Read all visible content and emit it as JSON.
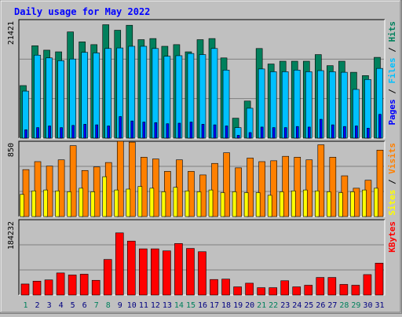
{
  "chart_data": [
    {
      "type": "bar",
      "title": "Daily usage for May 2022",
      "ylabel_parts": [
        "Pages",
        "Files",
        "Hits"
      ],
      "ymax_label": "21421",
      "ylim": [
        0,
        21421
      ],
      "categories": [
        "1",
        "2",
        "3",
        "4",
        "5",
        "6",
        "7",
        "8",
        "9",
        "10",
        "11",
        "12",
        "13",
        "14",
        "15",
        "16",
        "17",
        "18",
        "19",
        "20",
        "21",
        "22",
        "23",
        "24",
        "25",
        "26",
        "27",
        "28",
        "29",
        "30",
        "31"
      ],
      "weekend_days": [
        "1",
        "7",
        "8",
        "14",
        "15",
        "21",
        "22",
        "28",
        "29"
      ],
      "grid": true,
      "series": [
        {
          "name": "Hits",
          "color": "#00805c",
          "values": [
            9500,
            16700,
            15900,
            15600,
            19200,
            17400,
            16900,
            20500,
            19500,
            20400,
            17800,
            18000,
            16600,
            16900,
            15600,
            17800,
            18000,
            14500,
            3600,
            6700,
            16200,
            13400,
            13900,
            13900,
            13900,
            15100,
            13100,
            13900,
            11900,
            11300,
            14600
          ]
        },
        {
          "name": "Files",
          "color": "#00c0ff",
          "values": [
            8500,
            15000,
            14500,
            14000,
            14300,
            15500,
            15400,
            16200,
            16300,
            16600,
            16600,
            16200,
            14800,
            14900,
            15300,
            15100,
            16200,
            12300,
            1900,
            5400,
            12500,
            12000,
            12000,
            12300,
            12000,
            12200,
            12000,
            11900,
            8800,
            10600,
            12600
          ]
        },
        {
          "name": "Pages",
          "color": "#0000ff",
          "values": [
            1500,
            1900,
            2200,
            1900,
            2300,
            2500,
            2400,
            2200,
            3900,
            3100,
            2900,
            2800,
            2600,
            2700,
            2900,
            2500,
            2400,
            2200,
            500,
            1000,
            2000,
            1900,
            1900,
            2100,
            2000,
            3400,
            2400,
            2100,
            2200,
            1800,
            4300
          ]
        }
      ]
    },
    {
      "type": "bar",
      "ylabel_parts": [
        "Sites",
        "Visits"
      ],
      "ymax_label": "850",
      "ylim": [
        0,
        850
      ],
      "categories": [
        "1",
        "2",
        "3",
        "4",
        "5",
        "6",
        "7",
        "8",
        "9",
        "10",
        "11",
        "12",
        "13",
        "14",
        "15",
        "16",
        "17",
        "18",
        "19",
        "20",
        "21",
        "22",
        "23",
        "24",
        "25",
        "26",
        "27",
        "28",
        "29",
        "30",
        "31"
      ],
      "grid": true,
      "series": [
        {
          "name": "Visits",
          "color": "#ff8000",
          "values": [
            530,
            620,
            570,
            640,
            800,
            520,
            560,
            610,
            850,
            840,
            670,
            650,
            510,
            640,
            510,
            470,
            600,
            720,
            550,
            660,
            620,
            630,
            680,
            670,
            640,
            810,
            670,
            460,
            320,
            410,
            750
          ]
        },
        {
          "name": "Sites",
          "color": "#ffff00",
          "values": [
            250,
            290,
            300,
            290,
            280,
            320,
            280,
            450,
            300,
            310,
            340,
            320,
            280,
            330,
            290,
            280,
            300,
            270,
            280,
            270,
            270,
            240,
            280,
            290,
            300,
            290,
            280,
            270,
            280,
            300,
            320
          ]
        }
      ]
    },
    {
      "type": "bar",
      "ylabel_parts": [
        "KBytes"
      ],
      "ymax_label": "184232",
      "ylim": [
        0,
        184232
      ],
      "categories": [
        "1",
        "2",
        "3",
        "4",
        "5",
        "6",
        "7",
        "8",
        "9",
        "10",
        "11",
        "12",
        "13",
        "14",
        "15",
        "16",
        "17",
        "18",
        "19",
        "20",
        "21",
        "22",
        "23",
        "24",
        "25",
        "26",
        "27",
        "28",
        "29",
        "30",
        "31"
      ],
      "grid": true,
      "series": [
        {
          "name": "KBytes",
          "color": "#ff0000",
          "values": [
            27000,
            34000,
            37000,
            54000,
            49000,
            51000,
            36000,
            87000,
            152000,
            132000,
            113000,
            113000,
            108000,
            126000,
            114000,
            106000,
            38000,
            39000,
            20000,
            29000,
            18000,
            18000,
            35000,
            20000,
            24000,
            43000,
            43000,
            26000,
            24000,
            50000,
            78000
          ]
        }
      ]
    }
  ]
}
